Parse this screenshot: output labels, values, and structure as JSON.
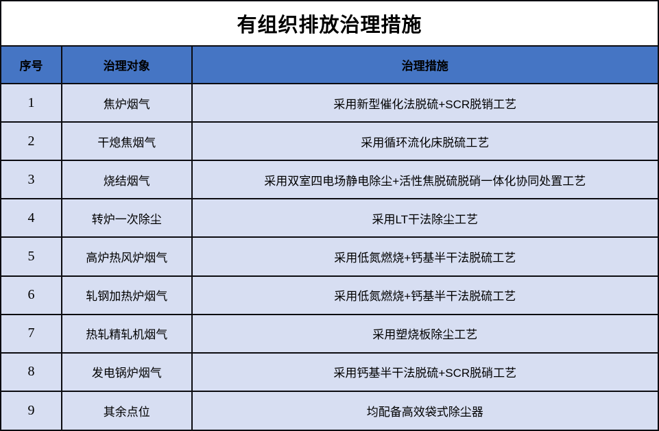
{
  "title": "有组织排放治理措施",
  "colors": {
    "accent": "#4575C4",
    "row_bg": "#D7DEF2",
    "border": "#0b0b10",
    "text": "#000000"
  },
  "table": {
    "headers": [
      "序号",
      "治理对象",
      "治理措施"
    ],
    "rows": [
      {
        "no": "1",
        "target": "焦炉烟气",
        "measure": "采用新型催化法脱硫+SCR脱销工艺"
      },
      {
        "no": "2",
        "target": "干熄焦烟气",
        "measure": "采用循环流化床脱硫工艺"
      },
      {
        "no": "3",
        "target": "烧结烟气",
        "measure": "采用双室四电场静电除尘+活性焦脱硫脱硝一体化协同处置工艺"
      },
      {
        "no": "4",
        "target": "转炉一次除尘",
        "measure": "采用LT干法除尘工艺"
      },
      {
        "no": "5",
        "target": "高炉热风炉烟气",
        "measure": "采用低氮燃烧+钙基半干法脱硫工艺"
      },
      {
        "no": "6",
        "target": "轧钢加热炉烟气",
        "measure": "采用低氮燃烧+钙基半干法脱硫工艺"
      },
      {
        "no": "7",
        "target": "热轧精轧机烟气",
        "measure": "采用塑烧板除尘工艺"
      },
      {
        "no": "8",
        "target": "发电锅炉烟气",
        "measure": "采用钙基半干法脱硫+SCR脱硝工艺"
      },
      {
        "no": "9",
        "target": "其余点位",
        "measure": "均配备高效袋式除尘器"
      }
    ]
  }
}
